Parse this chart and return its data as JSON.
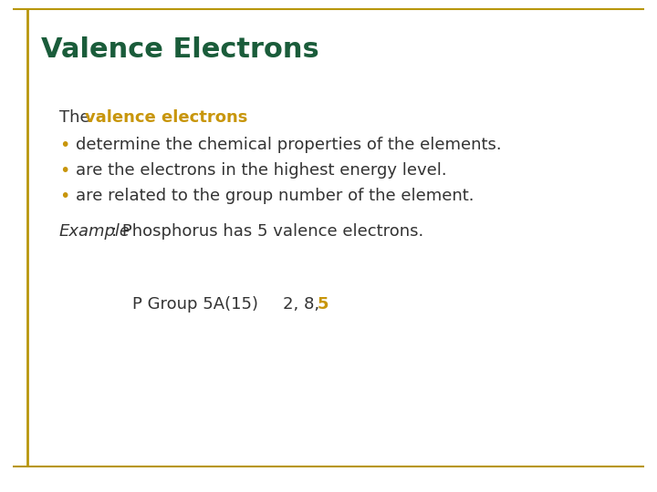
{
  "title": "Valence Electrons",
  "title_color": "#1a5c3a",
  "title_fontsize": 22,
  "background_color": "#ffffff",
  "border_color": "#b8960c",
  "highlight_color": "#c8960c",
  "text_color": "#333333",
  "bullet_color": "#c8960c",
  "font_size_body": 13,
  "font_size_example": 13,
  "bullets": [
    "determine the chemical properties of the elements.",
    "are the electrons in the highest energy level.",
    "are related to the group number of the element."
  ]
}
